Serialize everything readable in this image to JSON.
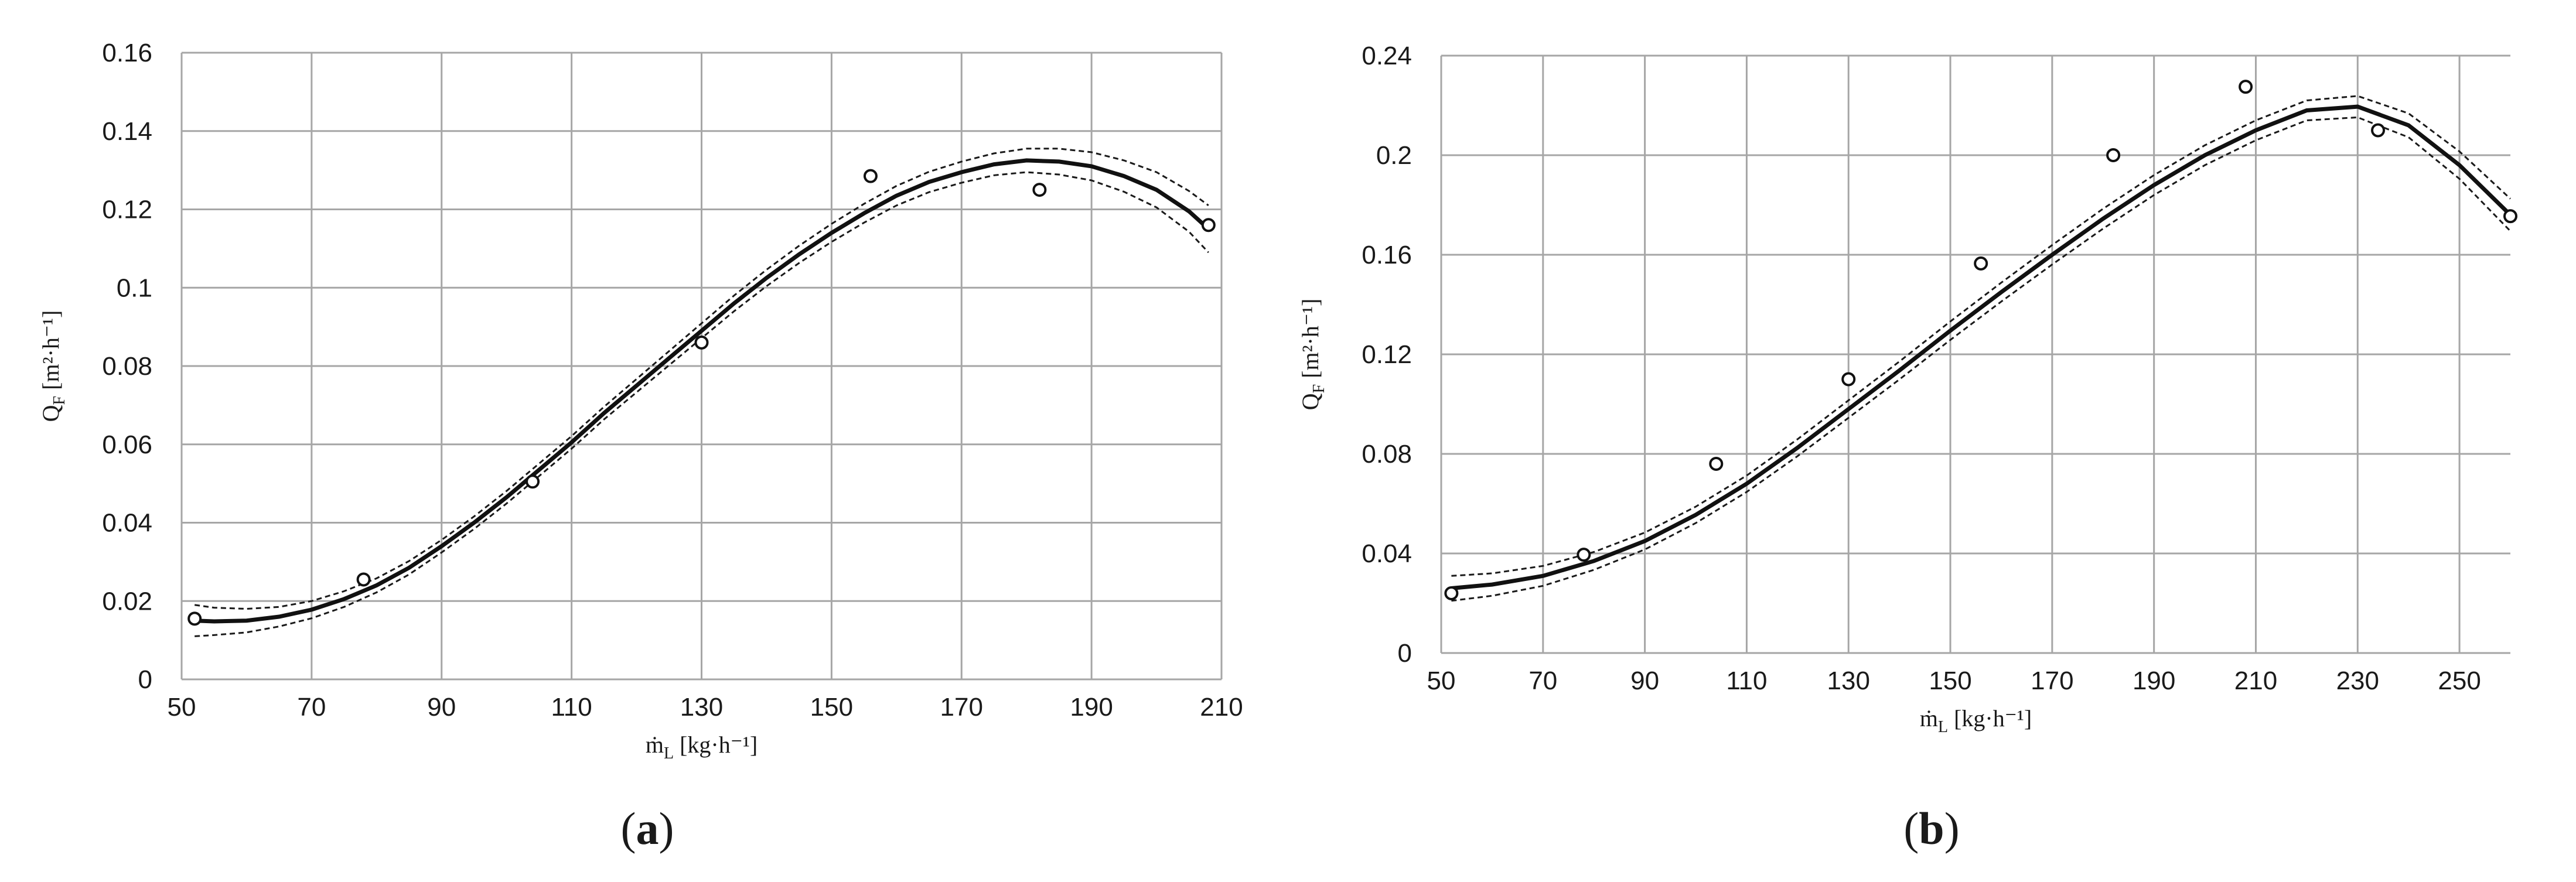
{
  "chart_data": [
    {
      "type": "scatter",
      "panel_label": "a",
      "xlabel": "ṁL [kg·h⁻¹]",
      "ylabel": "QF [m²·h⁻¹]",
      "xlim": [
        50,
        210
      ],
      "ylim": [
        0,
        0.16
      ],
      "x_ticks": [
        "50",
        "70",
        "90",
        "110",
        "130",
        "150",
        "170",
        "190",
        "210"
      ],
      "y_ticks": [
        "0",
        "0.02",
        "0.04",
        "0.06",
        "0.08",
        "0.1",
        "0.12",
        "0.14",
        "0.16"
      ],
      "grid": true,
      "series": [
        {
          "kind": "points",
          "x": [
            52,
            78,
            104,
            130,
            156,
            182,
            208
          ],
          "values": [
            0.0155,
            0.0255,
            0.0505,
            0.086,
            0.1285,
            0.125,
            0.116
          ]
        },
        {
          "kind": "fit",
          "x": [
            52,
            55,
            60,
            65,
            70,
            75,
            80,
            85,
            90,
            95,
            100,
            105,
            110,
            115,
            120,
            125,
            130,
            135,
            140,
            145,
            150,
            155,
            160,
            165,
            170,
            175,
            180,
            185,
            190,
            195,
            200,
            205,
            208
          ],
          "values": [
            0.015,
            0.0148,
            0.015,
            0.016,
            0.0178,
            0.0205,
            0.024,
            0.0285,
            0.034,
            0.04,
            0.0465,
            0.0535,
            0.0605,
            0.068,
            0.075,
            0.082,
            0.089,
            0.096,
            0.1025,
            0.1085,
            0.114,
            0.119,
            0.1235,
            0.127,
            0.1295,
            0.1315,
            0.1325,
            0.1322,
            0.131,
            0.1285,
            0.125,
            0.1195,
            0.115
          ]
        },
        {
          "kind": "ci",
          "offsets": [
            0.004,
            0.0035,
            0.003,
            0.0025,
            0.0022,
            0.002,
            0.0018,
            0.0017,
            0.0016,
            0.0016,
            0.0016,
            0.0016,
            0.0016,
            0.0016,
            0.0017,
            0.0018,
            0.0019,
            0.002,
            0.0021,
            0.0022,
            0.0023,
            0.0024,
            0.0025,
            0.0026,
            0.0027,
            0.0028,
            0.003,
            0.0033,
            0.0036,
            0.004,
            0.0045,
            0.0052,
            0.006
          ]
        }
      ]
    },
    {
      "type": "scatter",
      "panel_label": "b",
      "xlabel": "ṁL [kg·h⁻¹]",
      "ylabel": "QF [m²·h⁻¹]",
      "xlim": [
        50,
        260
      ],
      "ylim": [
        0,
        0.24
      ],
      "x_ticks": [
        "50",
        "70",
        "90",
        "110",
        "130",
        "150",
        "170",
        "190",
        "210",
        "230",
        "250"
      ],
      "y_ticks": [
        "0",
        "0.04",
        "0.08",
        "0.12",
        "0.16",
        "0.2",
        "0.24"
      ],
      "grid": true,
      "series": [
        {
          "kind": "points",
          "x": [
            52,
            78,
            104,
            130,
            156,
            182,
            208,
            234,
            260
          ],
          "values": [
            0.024,
            0.0395,
            0.076,
            0.11,
            0.1565,
            0.2,
            0.2275,
            0.21,
            0.1755
          ]
        },
        {
          "kind": "fit",
          "x": [
            52,
            60,
            70,
            80,
            90,
            100,
            110,
            120,
            130,
            140,
            150,
            160,
            170,
            180,
            190,
            200,
            210,
            220,
            230,
            240,
            250,
            260
          ],
          "values": [
            0.026,
            0.0275,
            0.031,
            0.037,
            0.045,
            0.0555,
            0.068,
            0.0825,
            0.098,
            0.1135,
            0.1295,
            0.145,
            0.16,
            0.1745,
            0.188,
            0.2,
            0.21,
            0.218,
            0.2195,
            0.212,
            0.196,
            0.176
          ]
        },
        {
          "kind": "ci",
          "offsets": [
            0.005,
            0.0045,
            0.004,
            0.0036,
            0.0034,
            0.0033,
            0.0033,
            0.0034,
            0.0035,
            0.0036,
            0.0037,
            0.0038,
            0.0039,
            0.004,
            0.004,
            0.004,
            0.004,
            0.004,
            0.0043,
            0.0048,
            0.0055,
            0.0065
          ]
        }
      ]
    }
  ]
}
